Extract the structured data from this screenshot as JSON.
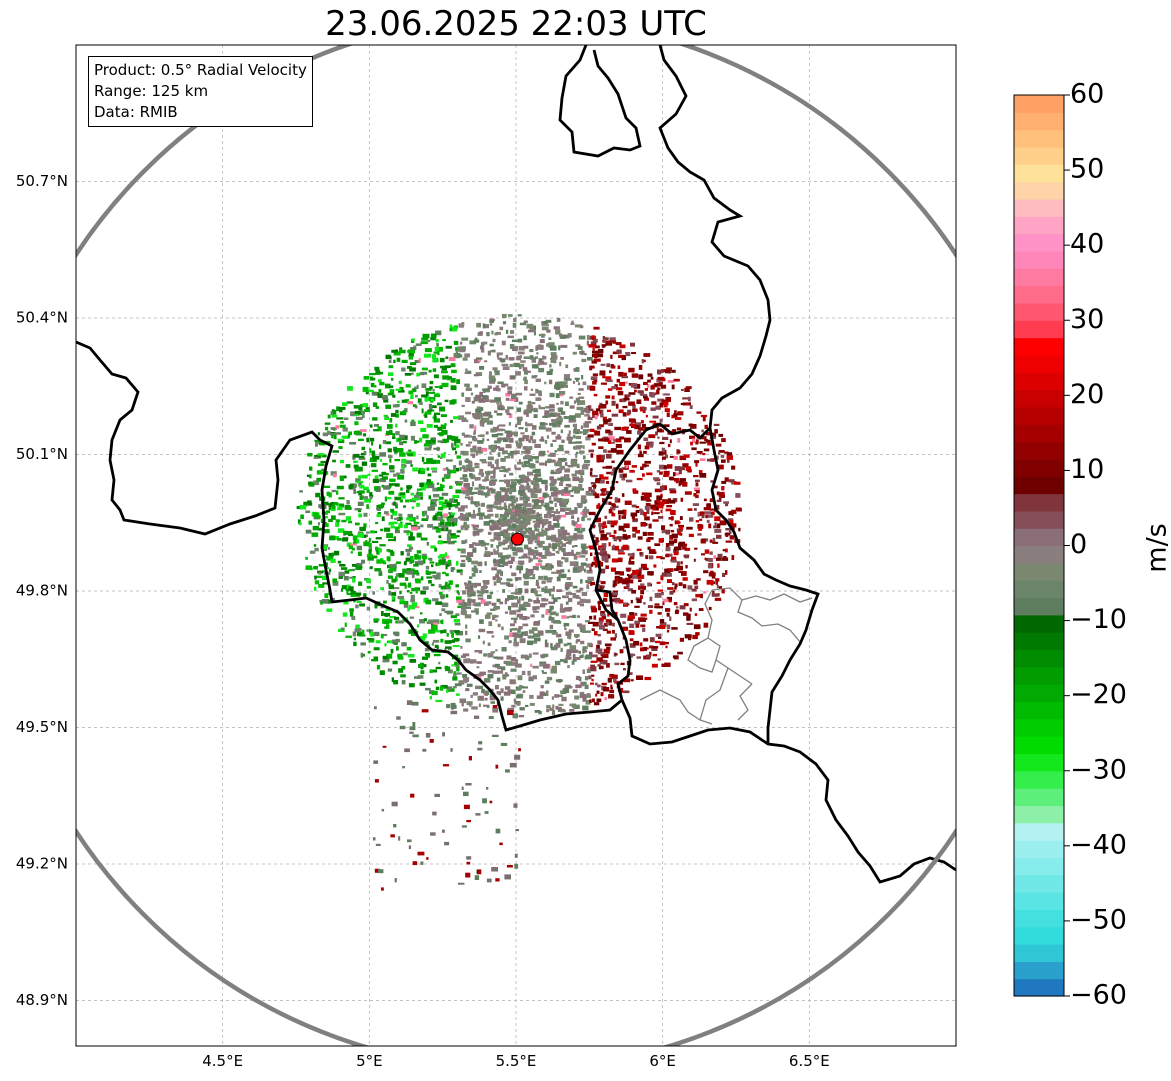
{
  "map": {
    "title": "23.06.2025 22:03 UTC",
    "info": {
      "product": "Product: 0.5° Radial Velocity",
      "range": "Range: 125 km",
      "data": "Data: RMIB"
    },
    "extent": {
      "lon_min": 4.0,
      "lon_max": 7.0,
      "lat_min": 48.8,
      "lat_max": 51.0
    },
    "radar_site": {
      "lon": 5.505,
      "lat": 49.914,
      "color": "#ff0000"
    },
    "range_ring_color": "#808080",
    "lat_ticks": [
      {
        "value": 48.9,
        "label": "48.9°N"
      },
      {
        "value": 49.2,
        "label": "49.2°N"
      },
      {
        "value": 49.5,
        "label": "49.5°N"
      },
      {
        "value": 49.8,
        "label": "49.8°N"
      },
      {
        "value": 50.1,
        "label": "50.1°N"
      },
      {
        "value": 50.4,
        "label": "50.4°N"
      },
      {
        "value": 50.7,
        "label": "50.7°N"
      }
    ],
    "lon_ticks": [
      {
        "value": 4.5,
        "label": "4.5°E"
      },
      {
        "value": 5.0,
        "label": "5°E"
      },
      {
        "value": 5.5,
        "label": "5.5°E"
      },
      {
        "value": 6.0,
        "label": "6°E"
      },
      {
        "value": 6.5,
        "label": "6.5°E"
      }
    ]
  },
  "colorbar": {
    "unit": "m/s",
    "min": -60,
    "max": 60,
    "ticks": [
      {
        "value": 60,
        "label": "60"
      },
      {
        "value": 50,
        "label": "50"
      },
      {
        "value": 40,
        "label": "40"
      },
      {
        "value": 30,
        "label": "30"
      },
      {
        "value": 20,
        "label": "20"
      },
      {
        "value": 10,
        "label": "10"
      },
      {
        "value": 0,
        "label": "0"
      },
      {
        "value": -10,
        "label": "−10"
      },
      {
        "value": -20,
        "label": "−20"
      },
      {
        "value": -30,
        "label": "−30"
      },
      {
        "value": -40,
        "label": "−40"
      },
      {
        "value": -50,
        "label": "−50"
      },
      {
        "value": -60,
        "label": "−60"
      }
    ],
    "colors_bottom_to_top": [
      "#1f78c0",
      "#2aa0cc",
      "#2fc6d6",
      "#33dcdc",
      "#44e0e0",
      "#5ae4e4",
      "#70e8e8",
      "#86ecec",
      "#9cefef",
      "#b4f2f2",
      "#8cf0a8",
      "#5cf07a",
      "#34ee4c",
      "#12e81c",
      "#00dc00",
      "#00cc00",
      "#00bb00",
      "#00aa00",
      "#009c00",
      "#008c00",
      "#007a00",
      "#006800",
      "#5f7d5f",
      "#6b856b",
      "#7a8870",
      "#8a7e7e",
      "#8a6e78",
      "#864e58",
      "#80343c",
      "#6e0000",
      "#800000",
      "#920000",
      "#a40000",
      "#b60000",
      "#c80000",
      "#dc0000",
      "#ee0000",
      "#ff0000",
      "#ff3c50",
      "#ff5870",
      "#ff6c8a",
      "#ff7aa0",
      "#ff86b8",
      "#ff92c6",
      "#ffa4c4",
      "#ffbcc0",
      "#ffd4a8",
      "#ffe29a",
      "#ffd08a",
      "#ffc07c",
      "#ffb070",
      "#ffa064"
    ]
  }
}
